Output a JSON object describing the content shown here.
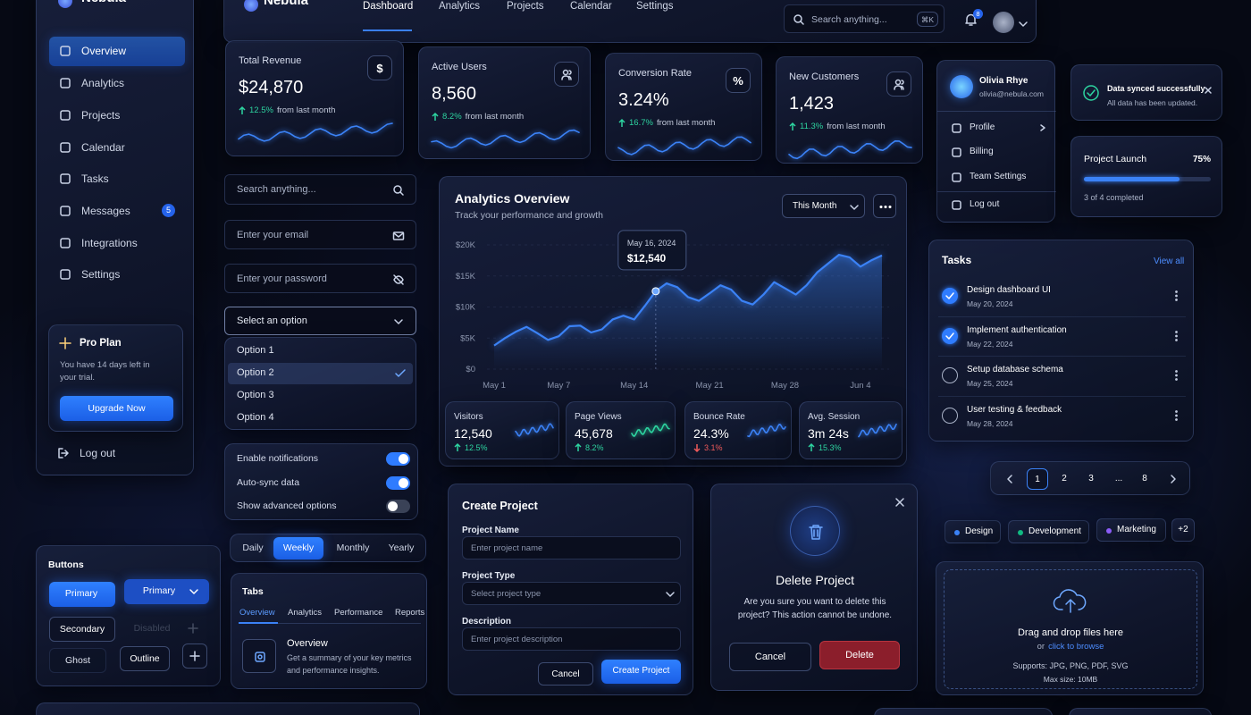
{
  "brand": "Nebula",
  "topnav": {
    "items": [
      "Dashboard",
      "Analytics",
      "Projects",
      "Calendar",
      "Settings"
    ],
    "search": "Search anything...",
    "shortcut": "⌘K",
    "notifications": "8"
  },
  "sidebar": {
    "items": [
      "Overview",
      "Analytics",
      "Projects",
      "Calendar",
      "Tasks",
      "Messages",
      "Integrations",
      "Settings"
    ],
    "messages_badge": "5",
    "plan": {
      "title": "Pro Plan",
      "text": "You have 14 days left in your trial.",
      "button": "Upgrade Now"
    },
    "logout": "Log out"
  },
  "stats": [
    {
      "label": "Total Revenue",
      "value": "$24,870",
      "change": "12.5%",
      "note": "from last month",
      "icon": "$"
    },
    {
      "label": "Active Users",
      "value": "8,560",
      "change": "8.2%",
      "note": "from last month"
    },
    {
      "label": "Conversion Rate",
      "value": "3.24%",
      "change": "16.7%",
      "note": "from last month",
      "icon": "%"
    },
    {
      "label": "New Customers",
      "value": "1,423",
      "change": "11.3%",
      "note": "from last month"
    }
  ],
  "forms": {
    "search": "Search anything...",
    "email": "Enter your email",
    "password": "Enter your password",
    "select": "Select an option",
    "options": [
      "Option 1",
      "Option 2",
      "Option 3",
      "Option 4"
    ]
  },
  "toggles": [
    {
      "label": "Enable notifications",
      "on": true
    },
    {
      "label": "Auto-sync data",
      "on": true
    },
    {
      "label": "Show advanced options",
      "on": false
    }
  ],
  "buttons": {
    "title": "Buttons",
    "primary": "Primary",
    "primary_menu": "Primary",
    "secondary": "Secondary",
    "disabled": "Disabled",
    "ghost": "Ghost",
    "outline": "Outline"
  },
  "segmented": [
    "Daily",
    "Weekly",
    "Monthly",
    "Yearly"
  ],
  "tabs": {
    "title": "Tabs",
    "items": [
      "Overview",
      "Analytics",
      "Performance",
      "Reports"
    ],
    "content_title": "Overview",
    "content_text": "Get a summary of your key metrics and performance insights."
  },
  "analytics": {
    "title": "Analytics Overview",
    "subtitle": "Track your performance and growth",
    "period": "This Month",
    "tooltip": {
      "date": "May 16, 2024",
      "value": "$12,540"
    },
    "chart": {
      "type": "line",
      "color": "#3b82f6",
      "categories": [
        "May 1",
        null,
        null,
        null,
        null,
        null,
        "May 7",
        null,
        null,
        null,
        null,
        null,
        null,
        "May 14",
        null,
        null,
        null,
        null,
        null,
        null,
        "May 21",
        null,
        null,
        null,
        null,
        null,
        null,
        "May 28",
        null,
        null,
        null,
        null,
        null,
        null,
        "Jun 4",
        null,
        null
      ],
      "values": [
        3800,
        5000,
        6000,
        6800,
        5800,
        4700,
        5300,
        6900,
        7000,
        5900,
        6400,
        8000,
        8600,
        8000,
        10200,
        12540,
        13800,
        13200,
        11600,
        11000,
        12200,
        13500,
        12800,
        11000,
        10400,
        12000,
        14000,
        13000,
        12000,
        13500,
        15600,
        17000,
        18400,
        18000,
        16500,
        17500,
        18300
      ],
      "ylim": [
        0,
        20000
      ],
      "yticks": [
        {
          "value": 0,
          "label": "$0"
        },
        {
          "value": 5000,
          "label": "$5K"
        },
        {
          "value": 10000,
          "label": "$10K"
        },
        {
          "value": 15000,
          "label": "$15K"
        },
        {
          "value": 20000,
          "label": "$20K"
        }
      ]
    },
    "metrics": [
      {
        "label": "Visitors",
        "value": "12,540",
        "change": "12.5%",
        "up": true
      },
      {
        "label": "Page Views",
        "value": "45,678",
        "change": "8.2%",
        "up": true
      },
      {
        "label": "Bounce Rate",
        "value": "24.3%",
        "change": "3.1%",
        "up": false
      },
      {
        "label": "Avg. Session",
        "value": "3m 24s",
        "change": "15.3%",
        "up": true
      }
    ]
  },
  "create_project": {
    "title": "Create Project",
    "fields": [
      {
        "label": "Project Name",
        "placeholder": "Enter project name"
      },
      {
        "label": "Project Type",
        "placeholder": "Select project type"
      },
      {
        "label": "Description",
        "placeholder": "Enter project description"
      }
    ],
    "cancel": "Cancel",
    "submit": "Create Project"
  },
  "delete_modal": {
    "title": "Delete Project",
    "text": "Are you sure you want to delete this project? This action cannot be undone.",
    "cancel": "Cancel",
    "confirm": "Delete"
  },
  "profile": {
    "name": "Olivia Rhye",
    "email": "olivia@nebula.com",
    "items": [
      "Profile",
      "Billing",
      "Team Settings",
      "Log out"
    ]
  },
  "toast": {
    "title": "Data synced successfully",
    "text": "All data has been updated."
  },
  "progress": {
    "title": "Project Launch",
    "value": 75,
    "value_label": "75%",
    "note": "3 of 4 completed"
  },
  "tasks": {
    "title": "Tasks",
    "view_all": "View all",
    "items": [
      {
        "name": "Design dashboard UI",
        "date": "May 20, 2024",
        "done": true
      },
      {
        "name": "Implement authentication",
        "date": "May 22, 2024",
        "done": true
      },
      {
        "name": "Setup database schema",
        "date": "May 25, 2024",
        "done": false
      },
      {
        "name": "User testing & feedback",
        "date": "May 28, 2024",
        "done": false
      }
    ]
  },
  "pagination": [
    "1",
    "2",
    "3",
    "...",
    "8"
  ],
  "tags": {
    "items": [
      {
        "name": "Design",
        "color": "#3b82f6"
      },
      {
        "name": "Development",
        "color": "#10b981"
      },
      {
        "name": "Marketing",
        "color": "#8b5cf6"
      }
    ],
    "more": "+2"
  },
  "upload": {
    "title": "Drag and drop files here",
    "or": "or",
    "link": "click to browse",
    "formats": "Supports: JPG, PNG, PDF, SVG",
    "max": "Max size: 10MB"
  }
}
